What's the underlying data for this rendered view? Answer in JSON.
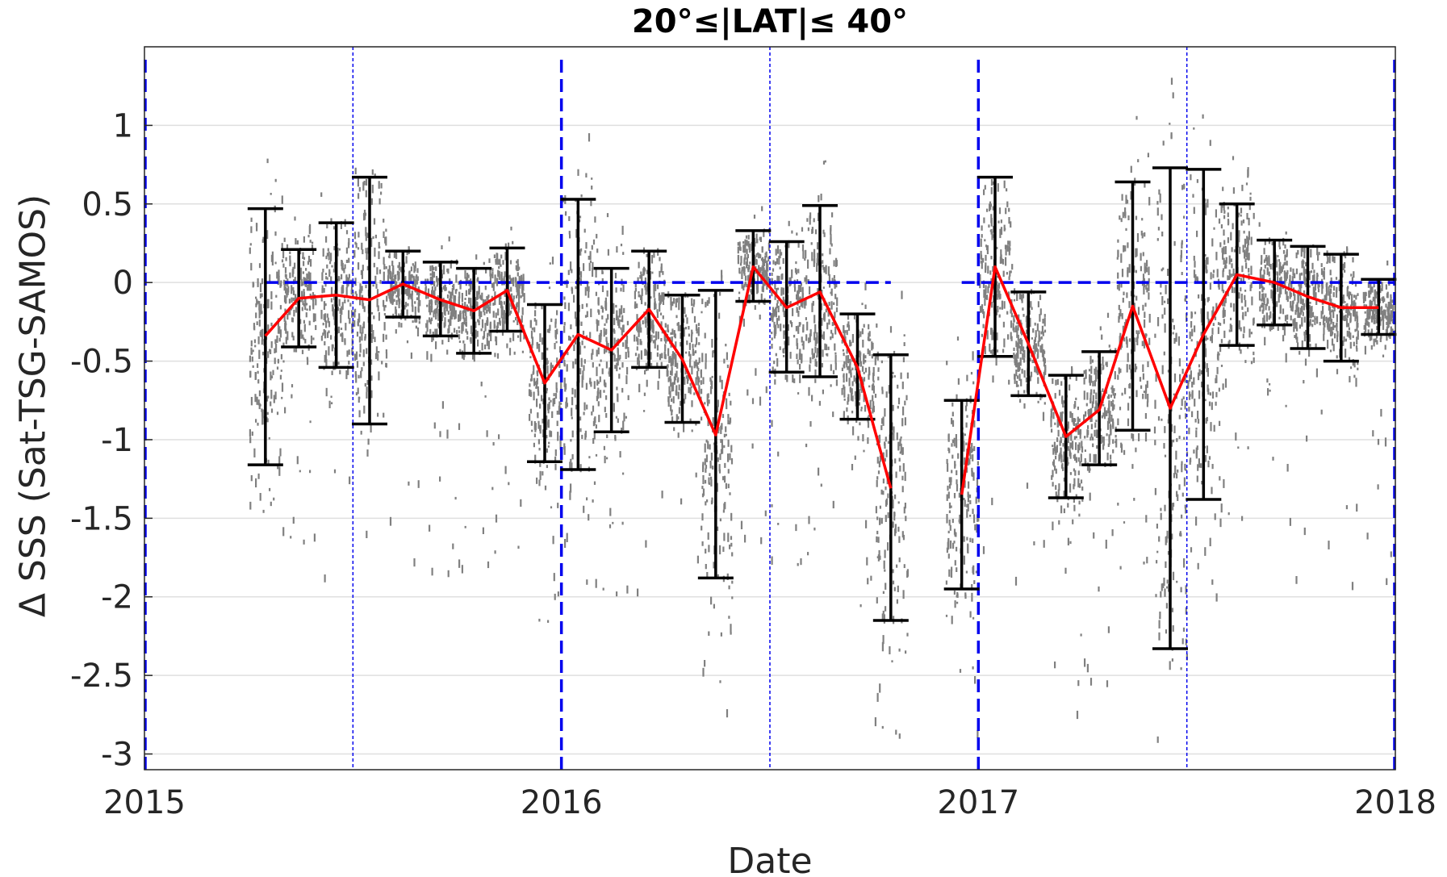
{
  "chart_data": {
    "type": "scatter",
    "title": "20°≤|LAT|≤ 40°",
    "xlabel": "Date",
    "ylabel": "Δ SSS (Sat-TSG-SAMOS)",
    "xlim": [
      2015.0,
      2018.0
    ],
    "ylim": [
      -3.1,
      1.5
    ],
    "x_ticks": [
      2015,
      2016,
      2017,
      2018
    ],
    "x_tick_labels": [
      "2015",
      "2016",
      "2017",
      "2018"
    ],
    "y_ticks": [
      1,
      0.5,
      0,
      -0.5,
      -1,
      -1.5,
      -2,
      -2.5,
      -3
    ],
    "y_tick_labels": [
      "1",
      "0.5",
      "0",
      "-0.5",
      "-1",
      "-1.5",
      "-2",
      "-2.5",
      "-3"
    ],
    "grid": true,
    "colors": {
      "scatter": "#808080",
      "mean_line": "#ff0000",
      "error_bar": "#000000",
      "reference": "#0000ee"
    },
    "year_markers": [
      2015.0,
      2016.0,
      2017.0,
      2018.0
    ],
    "half_year_markers": [
      2015.5,
      2016.5,
      2017.5
    ],
    "zero_line_segments": [
      [
        2015.29,
        2016.79
      ],
      [
        2016.96,
        2018.0
      ]
    ],
    "monthly": [
      {
        "x": 2015.29,
        "mean": -0.34,
        "upper": 0.47,
        "lower": -1.16
      },
      {
        "x": 2015.37,
        "mean": -0.1,
        "upper": 0.21,
        "lower": -0.41
      },
      {
        "x": 2015.46,
        "mean": -0.08,
        "upper": 0.38,
        "lower": -0.54
      },
      {
        "x": 2015.54,
        "mean": -0.11,
        "upper": 0.67,
        "lower": -0.9
      },
      {
        "x": 2015.62,
        "mean": -0.01,
        "upper": 0.2,
        "lower": -0.22
      },
      {
        "x": 2015.71,
        "mean": -0.11,
        "upper": 0.13,
        "lower": -0.34
      },
      {
        "x": 2015.79,
        "mean": -0.18,
        "upper": 0.09,
        "lower": -0.45
      },
      {
        "x": 2015.87,
        "mean": -0.05,
        "upper": 0.22,
        "lower": -0.31
      },
      {
        "x": 2015.96,
        "mean": -0.64,
        "upper": -0.14,
        "lower": -1.14
      },
      {
        "x": 2016.04,
        "mean": -0.33,
        "upper": 0.53,
        "lower": -1.19
      },
      {
        "x": 2016.12,
        "mean": -0.43,
        "upper": 0.09,
        "lower": -0.95
      },
      {
        "x": 2016.21,
        "mean": -0.17,
        "upper": 0.2,
        "lower": -0.54
      },
      {
        "x": 2016.29,
        "mean": -0.49,
        "upper": -0.08,
        "lower": -0.89
      },
      {
        "x": 2016.37,
        "mean": -0.97,
        "upper": -0.05,
        "lower": -1.88
      },
      {
        "x": 2016.46,
        "mean": 0.1,
        "upper": 0.33,
        "lower": -0.12
      },
      {
        "x": 2016.54,
        "mean": -0.16,
        "upper": 0.26,
        "lower": -0.57
      },
      {
        "x": 2016.62,
        "mean": -0.06,
        "upper": 0.49,
        "lower": -0.6
      },
      {
        "x": 2016.71,
        "mean": -0.54,
        "upper": -0.2,
        "lower": -0.87
      },
      {
        "x": 2016.79,
        "mean": -1.31,
        "upper": -0.46,
        "lower": -2.15
      },
      {
        "x": 2016.96,
        "mean": -1.35,
        "upper": -0.75,
        "lower": -1.95
      },
      {
        "x": 2017.04,
        "mean": 0.1,
        "upper": 0.67,
        "lower": -0.47
      },
      {
        "x": 2017.12,
        "mean": -0.39,
        "upper": -0.06,
        "lower": -0.72
      },
      {
        "x": 2017.21,
        "mean": -0.98,
        "upper": -0.59,
        "lower": -1.37
      },
      {
        "x": 2017.29,
        "mean": -0.81,
        "upper": -0.44,
        "lower": -1.16
      },
      {
        "x": 2017.37,
        "mean": -0.15,
        "upper": 0.64,
        "lower": -0.94
      },
      {
        "x": 2017.46,
        "mean": -0.8,
        "upper": 0.73,
        "lower": -2.33
      },
      {
        "x": 2017.54,
        "mean": -0.33,
        "upper": 0.72,
        "lower": -1.38
      },
      {
        "x": 2017.62,
        "mean": 0.05,
        "upper": 0.5,
        "lower": -0.4
      },
      {
        "x": 2017.71,
        "mean": 0.0,
        "upper": 0.27,
        "lower": -0.27
      },
      {
        "x": 2017.79,
        "mean": -0.09,
        "upper": 0.23,
        "lower": -0.42
      },
      {
        "x": 2017.87,
        "mean": -0.16,
        "upper": 0.18,
        "lower": -0.5
      },
      {
        "x": 2017.96,
        "mean": -0.16,
        "upper": 0.02,
        "lower": -0.33
      }
    ]
  }
}
